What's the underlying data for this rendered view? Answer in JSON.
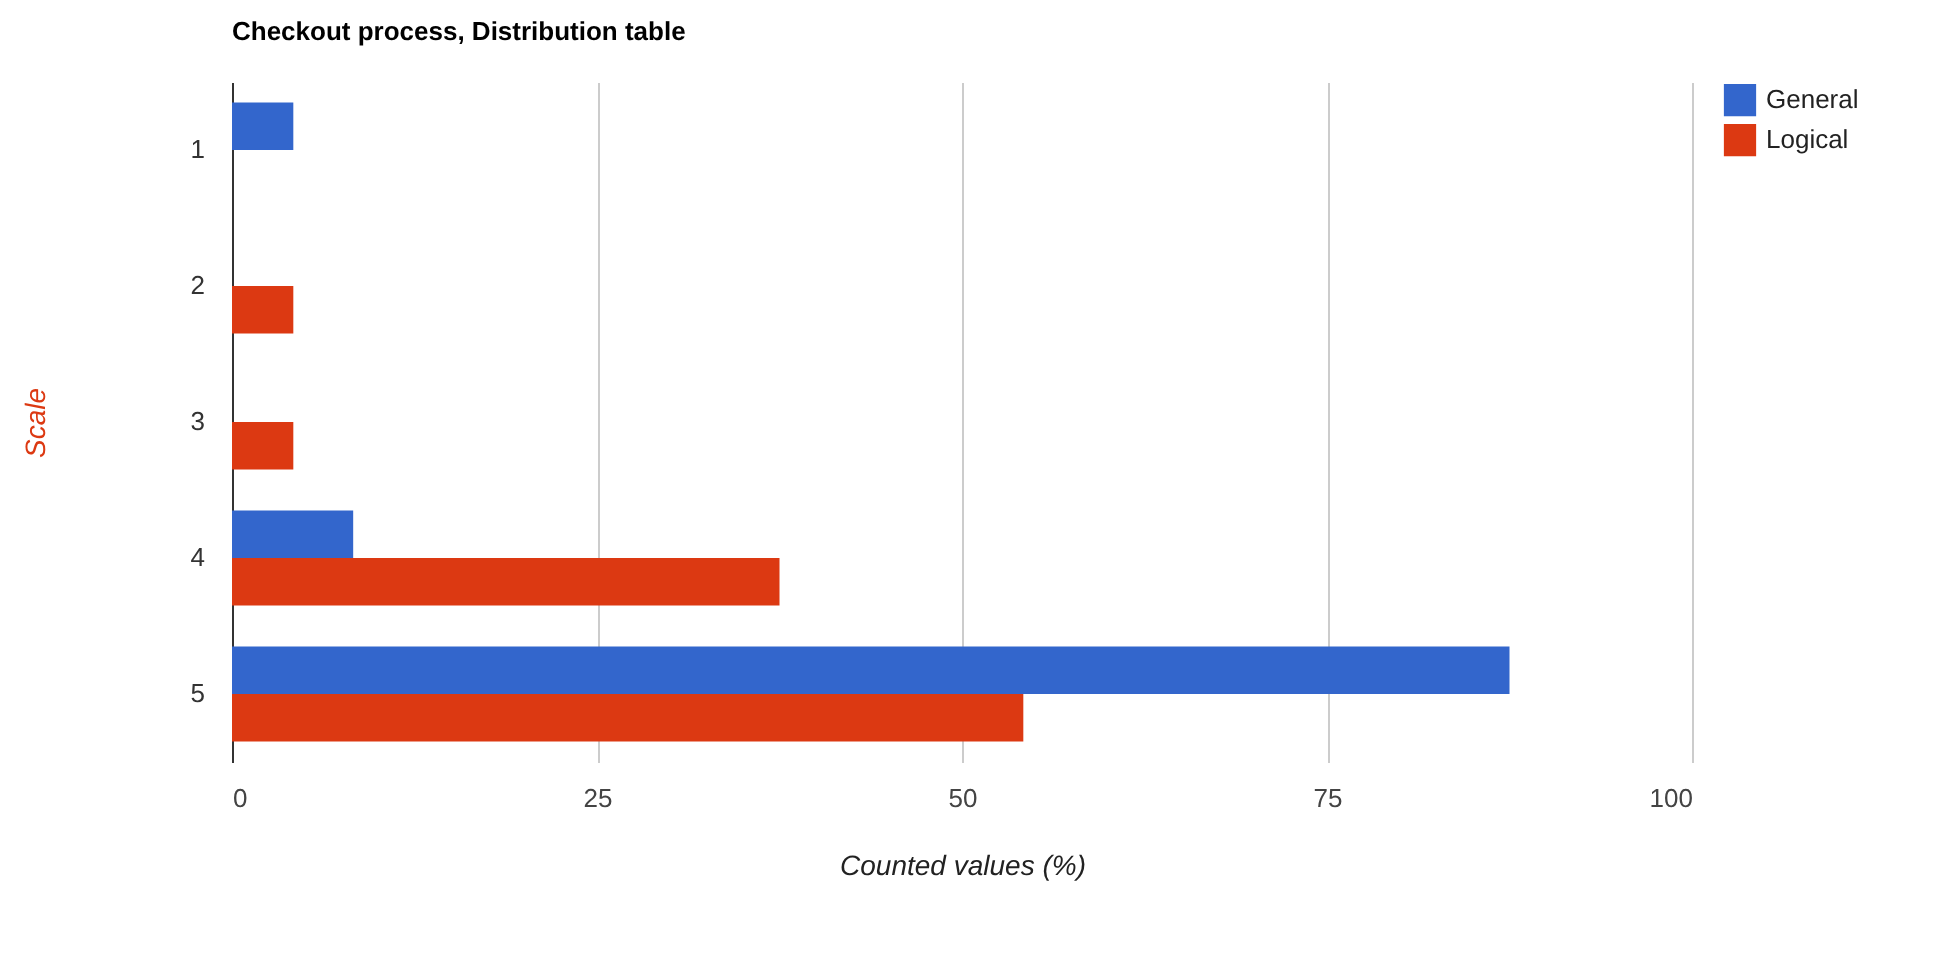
{
  "chart_data": {
    "type": "bar",
    "orientation": "horizontal",
    "title": "Checkout process, Distribution table",
    "xlabel": "Counted values (%)",
    "ylabel": "Scale",
    "categories": [
      "1",
      "2",
      "3",
      "4",
      "5"
    ],
    "series": [
      {
        "name": "General",
        "color": "#3366cc",
        "values": [
          4.2,
          null,
          null,
          8.3,
          87.5
        ]
      },
      {
        "name": "Logical",
        "color": "#dc3912",
        "values": [
          null,
          4.2,
          4.2,
          37.5,
          54.2
        ]
      }
    ],
    "xlim": [
      0,
      100
    ],
    "xticks": [
      0,
      25,
      50,
      75,
      100
    ],
    "grid": "x",
    "legend": "top right"
  }
}
